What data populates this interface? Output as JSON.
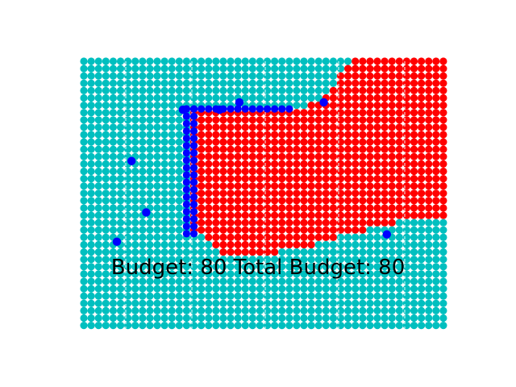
{
  "status": {
    "budget_label": "Budget: 80 Total Budget: 80"
  },
  "colors": {
    "background": "#ffffff",
    "free_cells": "#00bfbf",
    "claimed_region": "#ff0000",
    "agents": "#0000ff",
    "gridlines": "#e8f8f8",
    "text": "#000000"
  },
  "board": {
    "cols": 50,
    "rows": 37
  },
  "agents": [
    {
      "col": 13.5,
      "row": 6.6
    },
    {
      "col": 18.5,
      "row": 6.6
    },
    {
      "col": 21.2,
      "row": 5.6
    },
    {
      "col": 32.7,
      "row": 5.6
    },
    {
      "col": 6.5,
      "row": 13.6
    },
    {
      "col": 8.5,
      "row": 20.6
    },
    {
      "col": 4.5,
      "row": 24.6
    },
    {
      "col": 41.3,
      "row": 23.6
    }
  ]
}
